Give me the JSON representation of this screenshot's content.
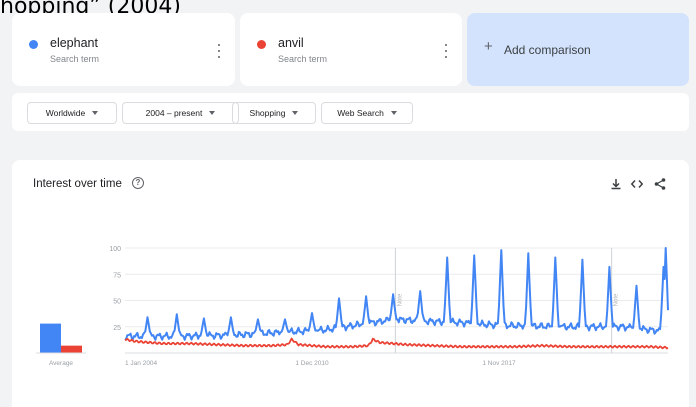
{
  "header_fragment": "hopping” (2004)",
  "terms": [
    {
      "name": "elephant",
      "subtitle": "Search term",
      "color": "#4285f4"
    },
    {
      "name": "anvil",
      "subtitle": "Search term",
      "color": "#ea4335"
    }
  ],
  "add_comparison": {
    "icon": "+",
    "label": "Add comparison"
  },
  "filters": {
    "region": "Worldwide",
    "time": "2004 – present",
    "category": "Shopping",
    "search_type": "Web Search"
  },
  "panel": {
    "title": "Interest over time",
    "help_icon": "?",
    "tools": [
      "download-icon",
      "embed-icon",
      "share-icon"
    ]
  },
  "chart_data": {
    "type": "line",
    "title": "Interest over time",
    "ylim": [
      0,
      100
    ],
    "yticks": [
      25,
      50,
      75,
      100
    ],
    "xlim": [
      "2004-01",
      "2024-02"
    ],
    "xtick_labels": [
      "1 Jan 2004",
      "1 Dec 2010",
      "1 Nov 2017"
    ],
    "grid": true,
    "annotations": [
      {
        "label": "Note",
        "x": "2014-01"
      },
      {
        "label": "Note",
        "x": "2022-01"
      }
    ],
    "average": {
      "label": "Average",
      "values": {
        "elephant": 28,
        "anvil": 7
      }
    },
    "series": [
      {
        "name": "elephant",
        "color": "#4285f4",
        "baseline": [
          [
            "2004-01",
            16
          ],
          [
            "2006-01",
            16
          ],
          [
            "2008-01",
            17
          ],
          [
            "2010-01",
            20
          ],
          [
            "2011-06",
            22
          ],
          [
            "2012-06",
            26
          ],
          [
            "2013-06",
            30
          ],
          [
            "2014-01",
            32
          ],
          [
            "2015-06",
            30
          ],
          [
            "2016-06",
            29
          ],
          [
            "2017-06",
            27
          ],
          [
            "2018-06",
            26
          ],
          [
            "2020-06",
            25
          ],
          [
            "2022-06",
            25
          ],
          [
            "2024-02",
            20
          ]
        ],
        "peaks": [
          [
            "2004-11",
            34
          ],
          [
            "2005-12",
            37
          ],
          [
            "2006-12",
            33
          ],
          [
            "2007-12",
            34
          ],
          [
            "2008-12",
            32
          ],
          [
            "2009-12",
            32
          ],
          [
            "2010-12",
            38
          ],
          [
            "2011-12",
            52
          ],
          [
            "2012-12",
            54
          ],
          [
            "2013-12",
            56
          ],
          [
            "2014-12",
            59
          ],
          [
            "2015-12",
            91
          ],
          [
            "2016-12",
            93
          ],
          [
            "2017-12",
            98
          ],
          [
            "2018-12",
            95
          ],
          [
            "2019-12",
            91
          ],
          [
            "2020-12",
            89
          ],
          [
            "2021-12",
            82
          ],
          [
            "2022-12",
            64
          ],
          [
            "2023-12",
            82
          ],
          [
            "2024-01",
            100
          ]
        ]
      },
      {
        "name": "anvil",
        "color": "#ea4335",
        "values": [
          [
            "2004-01",
            13
          ],
          [
            "2004-06",
            11
          ],
          [
            "2005-06",
            9
          ],
          [
            "2006-06",
            9
          ],
          [
            "2007-06",
            8
          ],
          [
            "2008-06",
            7
          ],
          [
            "2009-06",
            7
          ],
          [
            "2010-01",
            8
          ],
          [
            "2010-03",
            13
          ],
          [
            "2010-06",
            8
          ],
          [
            "2011-06",
            6
          ],
          [
            "2012-06",
            6
          ],
          [
            "2013-01",
            7
          ],
          [
            "2013-03",
            13
          ],
          [
            "2013-06",
            10
          ],
          [
            "2014-06",
            8
          ],
          [
            "2015-06",
            7
          ],
          [
            "2016-06",
            6
          ],
          [
            "2017-06",
            6
          ],
          [
            "2018-06",
            6
          ],
          [
            "2019-06",
            7
          ],
          [
            "2020-06",
            6
          ],
          [
            "2021-06",
            6
          ],
          [
            "2022-06",
            6
          ],
          [
            "2023-06",
            6
          ],
          [
            "2024-02",
            5
          ]
        ]
      }
    ]
  }
}
